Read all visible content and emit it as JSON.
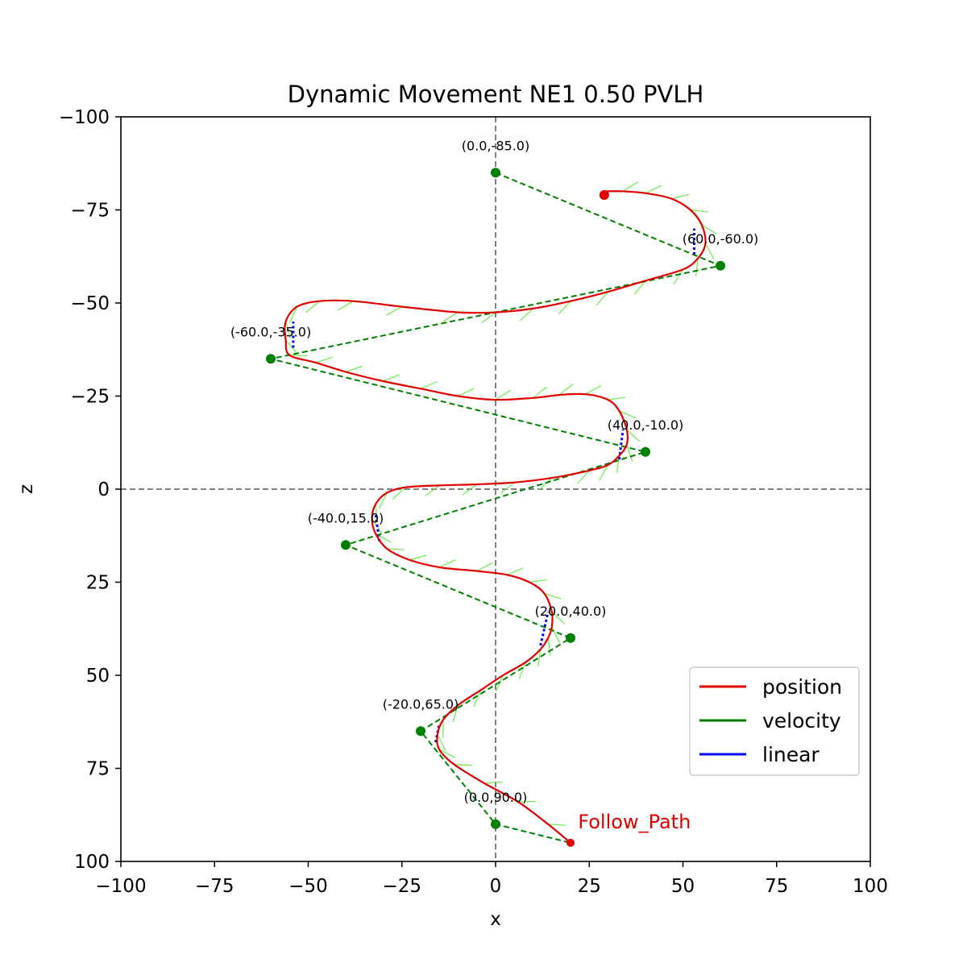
{
  "chart_data": {
    "type": "line",
    "title": "Dynamic Movement NE1 0.50 PVLH",
    "xlabel": "x",
    "ylabel": "z",
    "xlim": [
      -100,
      100
    ],
    "ylim": [
      -100,
      100
    ],
    "y_inverted": true,
    "xticks": [
      -100,
      -75,
      -50,
      -25,
      0,
      25,
      50,
      75,
      100
    ],
    "yticks": [
      -100,
      -75,
      -50,
      -25,
      0,
      25,
      50,
      75,
      100
    ],
    "xtick_labels": [
      "−100",
      "−75",
      "−50",
      "−25",
      "0",
      "25",
      "50",
      "75",
      "100"
    ],
    "ytick_labels": [
      "−100",
      "−75",
      "−50",
      "−25",
      "0",
      "25",
      "50",
      "75",
      "100"
    ],
    "reference_lines": [
      {
        "axis": "x",
        "value": 0
      },
      {
        "axis": "z",
        "value": 0
      }
    ],
    "grid": false,
    "legend_position": "lower-right",
    "colors": {
      "position": "#e00000",
      "velocity": "#008000",
      "linear": "#0000ee",
      "velocity_arrows": "#66ee44",
      "reference": "#808080"
    },
    "series": [
      {
        "name": "position",
        "color": "#e00000",
        "points": [
          [
            20,
            95
          ],
          [
            14,
            90
          ],
          [
            6,
            84
          ],
          [
            -3,
            79
          ],
          [
            -11,
            74
          ],
          [
            -15,
            70
          ],
          [
            -15.5,
            66
          ],
          [
            -14,
            62
          ],
          [
            -10,
            58
          ],
          [
            -4,
            54
          ],
          [
            2,
            50
          ],
          [
            8,
            46.5
          ],
          [
            12,
            43
          ],
          [
            14,
            40
          ],
          [
            15,
            37
          ],
          [
            15,
            33
          ],
          [
            13,
            28
          ],
          [
            9,
            25
          ],
          [
            3,
            23
          ],
          [
            -5,
            22
          ],
          [
            -15,
            21
          ],
          [
            -23,
            19
          ],
          [
            -29,
            16
          ],
          [
            -32,
            12
          ],
          [
            -33,
            8
          ],
          [
            -32,
            4
          ],
          [
            -29,
            1
          ],
          [
            -24,
            -0.5
          ],
          [
            -15,
            -1
          ],
          [
            -5,
            -1.3
          ],
          [
            5,
            -1.8
          ],
          [
            15,
            -3
          ],
          [
            25,
            -5
          ],
          [
            30,
            -6.5
          ],
          [
            33,
            -9
          ],
          [
            35,
            -12
          ],
          [
            35,
            -16
          ],
          [
            33,
            -21
          ],
          [
            30,
            -24
          ],
          [
            24,
            -25.5
          ],
          [
            17,
            -25.3
          ],
          [
            10,
            -24.5
          ],
          [
            0,
            -24
          ],
          [
            -10,
            -25
          ],
          [
            -20,
            -27
          ],
          [
            -30,
            -29
          ],
          [
            -40,
            -31.5
          ],
          [
            -48,
            -34
          ],
          [
            -55,
            -36
          ],
          [
            -56,
            -40
          ],
          [
            -56,
            -45
          ],
          [
            -53,
            -49
          ],
          [
            -47,
            -50.5
          ],
          [
            -38,
            -50.5
          ],
          [
            -25,
            -49
          ],
          [
            -10,
            -47.5
          ],
          [
            0,
            -47.5
          ],
          [
            10,
            -48.5
          ],
          [
            20,
            -50.5
          ],
          [
            30,
            -53
          ],
          [
            40,
            -56
          ],
          [
            50,
            -59
          ],
          [
            54,
            -62
          ],
          [
            56,
            -66
          ],
          [
            55,
            -71
          ],
          [
            52,
            -75
          ],
          [
            47,
            -78
          ],
          [
            40,
            -79.5
          ],
          [
            34,
            -80
          ],
          [
            29,
            -80
          ]
        ],
        "start": [
          29,
          -79
        ],
        "end": [
          20,
          95
        ]
      },
      {
        "name": "velocity",
        "color": "#008000",
        "style": "dashed",
        "points": [
          [
            0,
            -85
          ],
          [
            60,
            -60
          ],
          [
            -60,
            -35
          ],
          [
            40,
            -10
          ],
          [
            -40,
            15
          ],
          [
            20,
            40
          ],
          [
            -20,
            65
          ],
          [
            0,
            90
          ],
          [
            20,
            95
          ]
        ]
      },
      {
        "name": "linear",
        "color": "#0000ee",
        "points": [
          [
            -16,
            68
          ],
          [
            -15,
            63
          ],
          [
            12,
            42
          ],
          [
            14,
            33
          ],
          [
            -31,
            14
          ],
          [
            -32,
            7
          ],
          [
            33,
            -8
          ],
          [
            34,
            -16
          ],
          [
            -54,
            -38
          ],
          [
            -54,
            -45
          ],
          [
            53,
            -63
          ],
          [
            53,
            -70
          ]
        ]
      }
    ],
    "waypoints": [
      {
        "x": 0,
        "z": -85,
        "label": "(0.0,-85.0)"
      },
      {
        "x": 60,
        "z": -60,
        "label": "(60.0,-60.0)"
      },
      {
        "x": -60,
        "z": -35,
        "label": "(-60.0,-35.0)"
      },
      {
        "x": 40,
        "z": -10,
        "label": "(40.0,-10.0)"
      },
      {
        "x": -40,
        "z": 15,
        "label": "(-40.0,15.0)"
      },
      {
        "x": 20,
        "z": 40,
        "label": "(20.0,40.0)"
      },
      {
        "x": -20,
        "z": 65,
        "label": "(-20.0,65.0)"
      },
      {
        "x": 0,
        "z": 90,
        "label": "(0.0,90.0)"
      }
    ],
    "annotations": [
      {
        "text": "Follow_Path",
        "x": 22,
        "z": 90,
        "color": "#e00000"
      }
    ]
  }
}
